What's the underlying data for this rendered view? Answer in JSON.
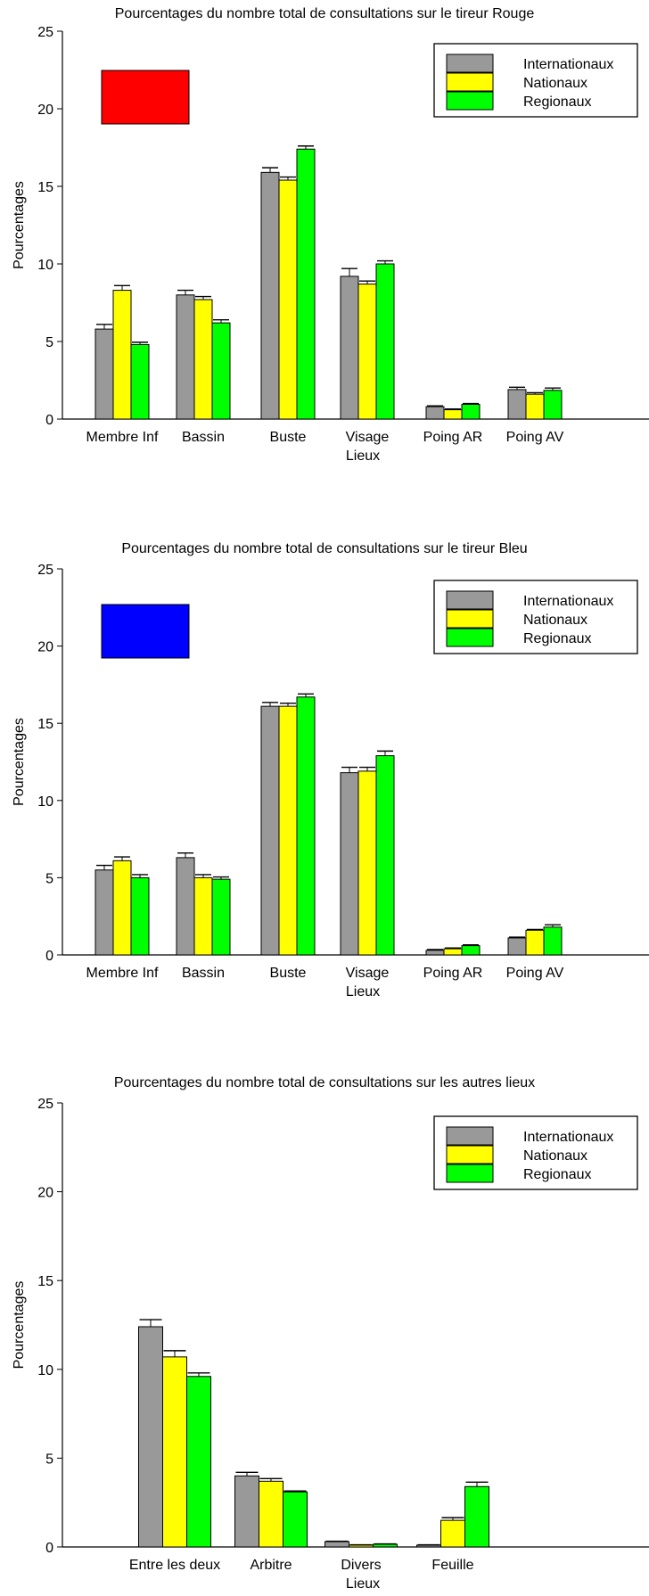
{
  "colors": {
    "series": [
      "#999999",
      "#ffff00",
      "#00ff00"
    ],
    "swatches": [
      "#ff0000",
      "#0000ff"
    ]
  },
  "chart_data": [
    {
      "type": "bar",
      "title": "Pourcentages du nombre total de consultations sur le tireur Rouge",
      "xlabel": "Lieux",
      "ylabel": "Pourcentages",
      "ylim": [
        0,
        25
      ],
      "yticks": [
        "0",
        "5",
        "10",
        "15",
        "20",
        "25"
      ],
      "legend_position": "top-right",
      "swatch_color": "#ff0000",
      "categories": [
        "Membre Inf",
        "Bassin",
        "Buste",
        "Visage",
        "Poing AR",
        "Poing AV"
      ],
      "series": [
        {
          "name": "Internationaux",
          "values": [
            5.8,
            8.0,
            15.9,
            9.2,
            0.8,
            1.9
          ],
          "errors": [
            0.3,
            0.3,
            0.3,
            0.5,
            0.05,
            0.15
          ]
        },
        {
          "name": "Nationaux",
          "values": [
            8.3,
            7.7,
            15.4,
            8.7,
            0.6,
            1.6
          ],
          "errors": [
            0.3,
            0.2,
            0.2,
            0.2,
            0.05,
            0.1
          ]
        },
        {
          "name": "Regionaux",
          "values": [
            4.8,
            6.2,
            17.4,
            10.0,
            0.95,
            1.85
          ],
          "errors": [
            0.15,
            0.2,
            0.2,
            0.2,
            0.05,
            0.15
          ]
        }
      ]
    },
    {
      "type": "bar",
      "title": "Pourcentages du nombre total de consultations sur le tireur Bleu",
      "xlabel": "Lieux",
      "ylabel": "Pourcentages",
      "ylim": [
        0,
        25
      ],
      "yticks": [
        "0",
        "5",
        "10",
        "15",
        "20",
        "25"
      ],
      "legend_position": "top-right",
      "swatch_color": "#0000ff",
      "categories": [
        "Membre Inf",
        "Bassin",
        "Buste",
        "Visage",
        "Poing AR",
        "Poing AV"
      ],
      "series": [
        {
          "name": "Internationaux",
          "values": [
            5.5,
            6.3,
            16.1,
            11.8,
            0.3,
            1.1
          ],
          "errors": [
            0.3,
            0.3,
            0.25,
            0.35,
            0.05,
            0.05
          ]
        },
        {
          "name": "Nationaux",
          "values": [
            6.1,
            5.0,
            16.1,
            11.9,
            0.4,
            1.6
          ],
          "errors": [
            0.25,
            0.2,
            0.2,
            0.25,
            0.05,
            0.05
          ]
        },
        {
          "name": "Regionaux",
          "values": [
            5.0,
            4.9,
            16.7,
            12.9,
            0.6,
            1.8
          ],
          "errors": [
            0.2,
            0.15,
            0.2,
            0.3,
            0.05,
            0.15
          ]
        }
      ]
    },
    {
      "type": "bar",
      "title": "Pourcentages du nombre total de consultations sur les autres lieux",
      "xlabel": "Lieux",
      "ylabel": "Pourcentages",
      "ylim": [
        0,
        25
      ],
      "yticks": [
        "0",
        "5",
        "10",
        "15",
        "20",
        "25"
      ],
      "legend_position": "top-right",
      "categories": [
        "Entre les deux",
        "Arbitre",
        "Divers",
        "Feuille"
      ],
      "series": [
        {
          "name": "Internationaux",
          "values": [
            12.4,
            4.0,
            0.3,
            0.1
          ],
          "errors": [
            0.4,
            0.2,
            0.02,
            0.02
          ]
        },
        {
          "name": "Nationaux",
          "values": [
            10.7,
            3.7,
            0.1,
            1.5
          ],
          "errors": [
            0.35,
            0.15,
            0.02,
            0.15
          ]
        },
        {
          "name": "Regionaux",
          "values": [
            9.6,
            3.1,
            0.15,
            3.4
          ],
          "errors": [
            0.2,
            0.05,
            0.02,
            0.25
          ]
        }
      ]
    }
  ]
}
